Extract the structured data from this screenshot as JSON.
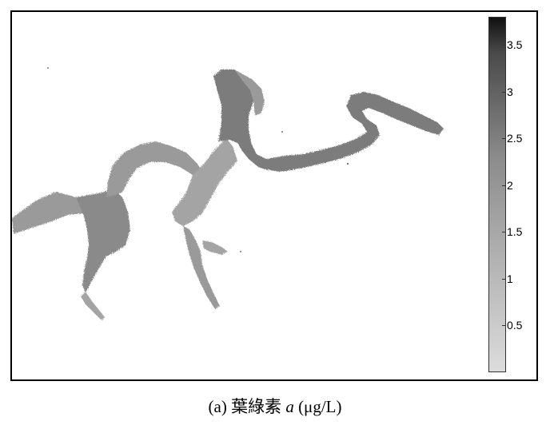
{
  "map": {
    "colormap": {
      "low_color": "#dcdcdc",
      "mid_color": "#8c8c8c",
      "high_color": "#111111",
      "ticks": [
        "3.5",
        "3",
        "2.5",
        "2",
        "1.5",
        "1",
        "0.5"
      ],
      "tick_values": [
        3.5,
        3.0,
        2.5,
        2.0,
        1.5,
        1.0,
        0.5
      ],
      "range": [
        0.0,
        3.8
      ]
    },
    "reservoir_color": "#8f8f8f"
  },
  "caption": {
    "label": "(a)",
    "variable": "葉綠素",
    "symbol": "a",
    "unit": "(μg/L)"
  }
}
